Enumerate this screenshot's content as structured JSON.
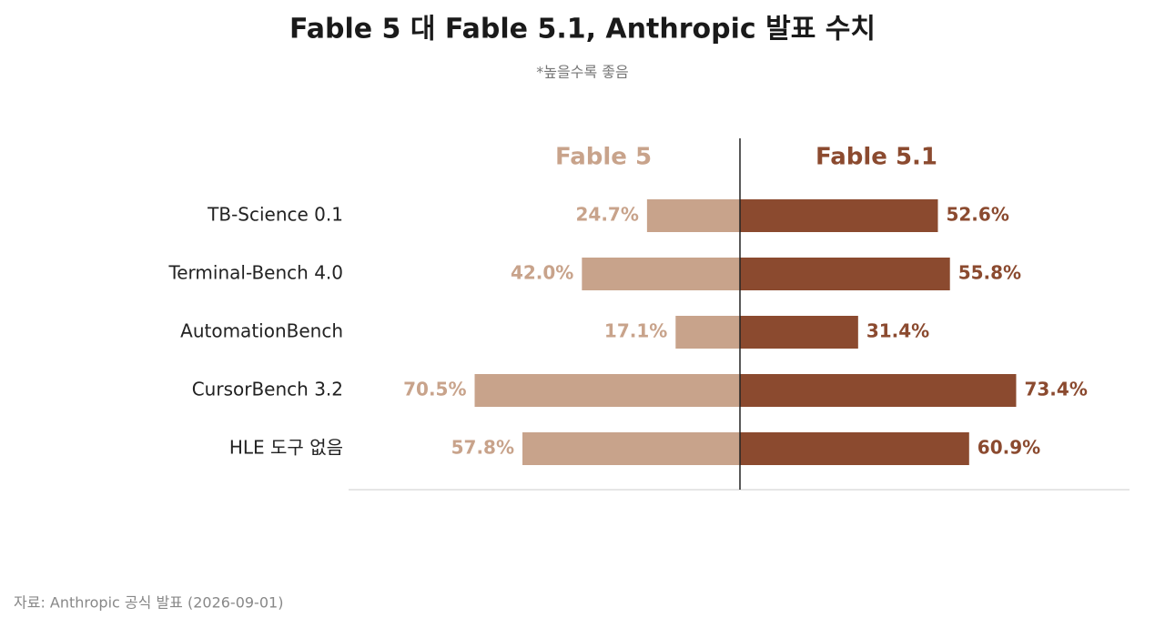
{
  "chart_data": {
    "type": "bar",
    "title": "Fable 5 대 Fable 5.1, Anthropic 발표 수치",
    "subtitle": "*높을수록 좋음",
    "categories": [
      "TB-Science 0.1",
      "Terminal-Bench 4.0",
      "AutomationBench",
      "CursorBench 3.2",
      "HLE 도구 없음"
    ],
    "series": [
      {
        "name": "Fable 5",
        "color": "#c8a38b",
        "values": [
          24.7,
          42.0,
          17.1,
          70.5,
          57.8
        ],
        "value_labels": [
          "24.7%",
          "42.0%",
          "17.1%",
          "70.5%",
          "57.8%"
        ]
      },
      {
        "name": "Fable 5.1",
        "color": "#8b4a2f",
        "values": [
          52.6,
          55.8,
          31.4,
          73.4,
          60.9
        ],
        "value_labels": [
          "52.6%",
          "55.8%",
          "31.4%",
          "73.4%",
          "60.9%"
        ]
      }
    ],
    "xlim": [
      0,
      104
    ],
    "source": "자료: Anthropic 공식 발표 (2026-09-01)"
  }
}
